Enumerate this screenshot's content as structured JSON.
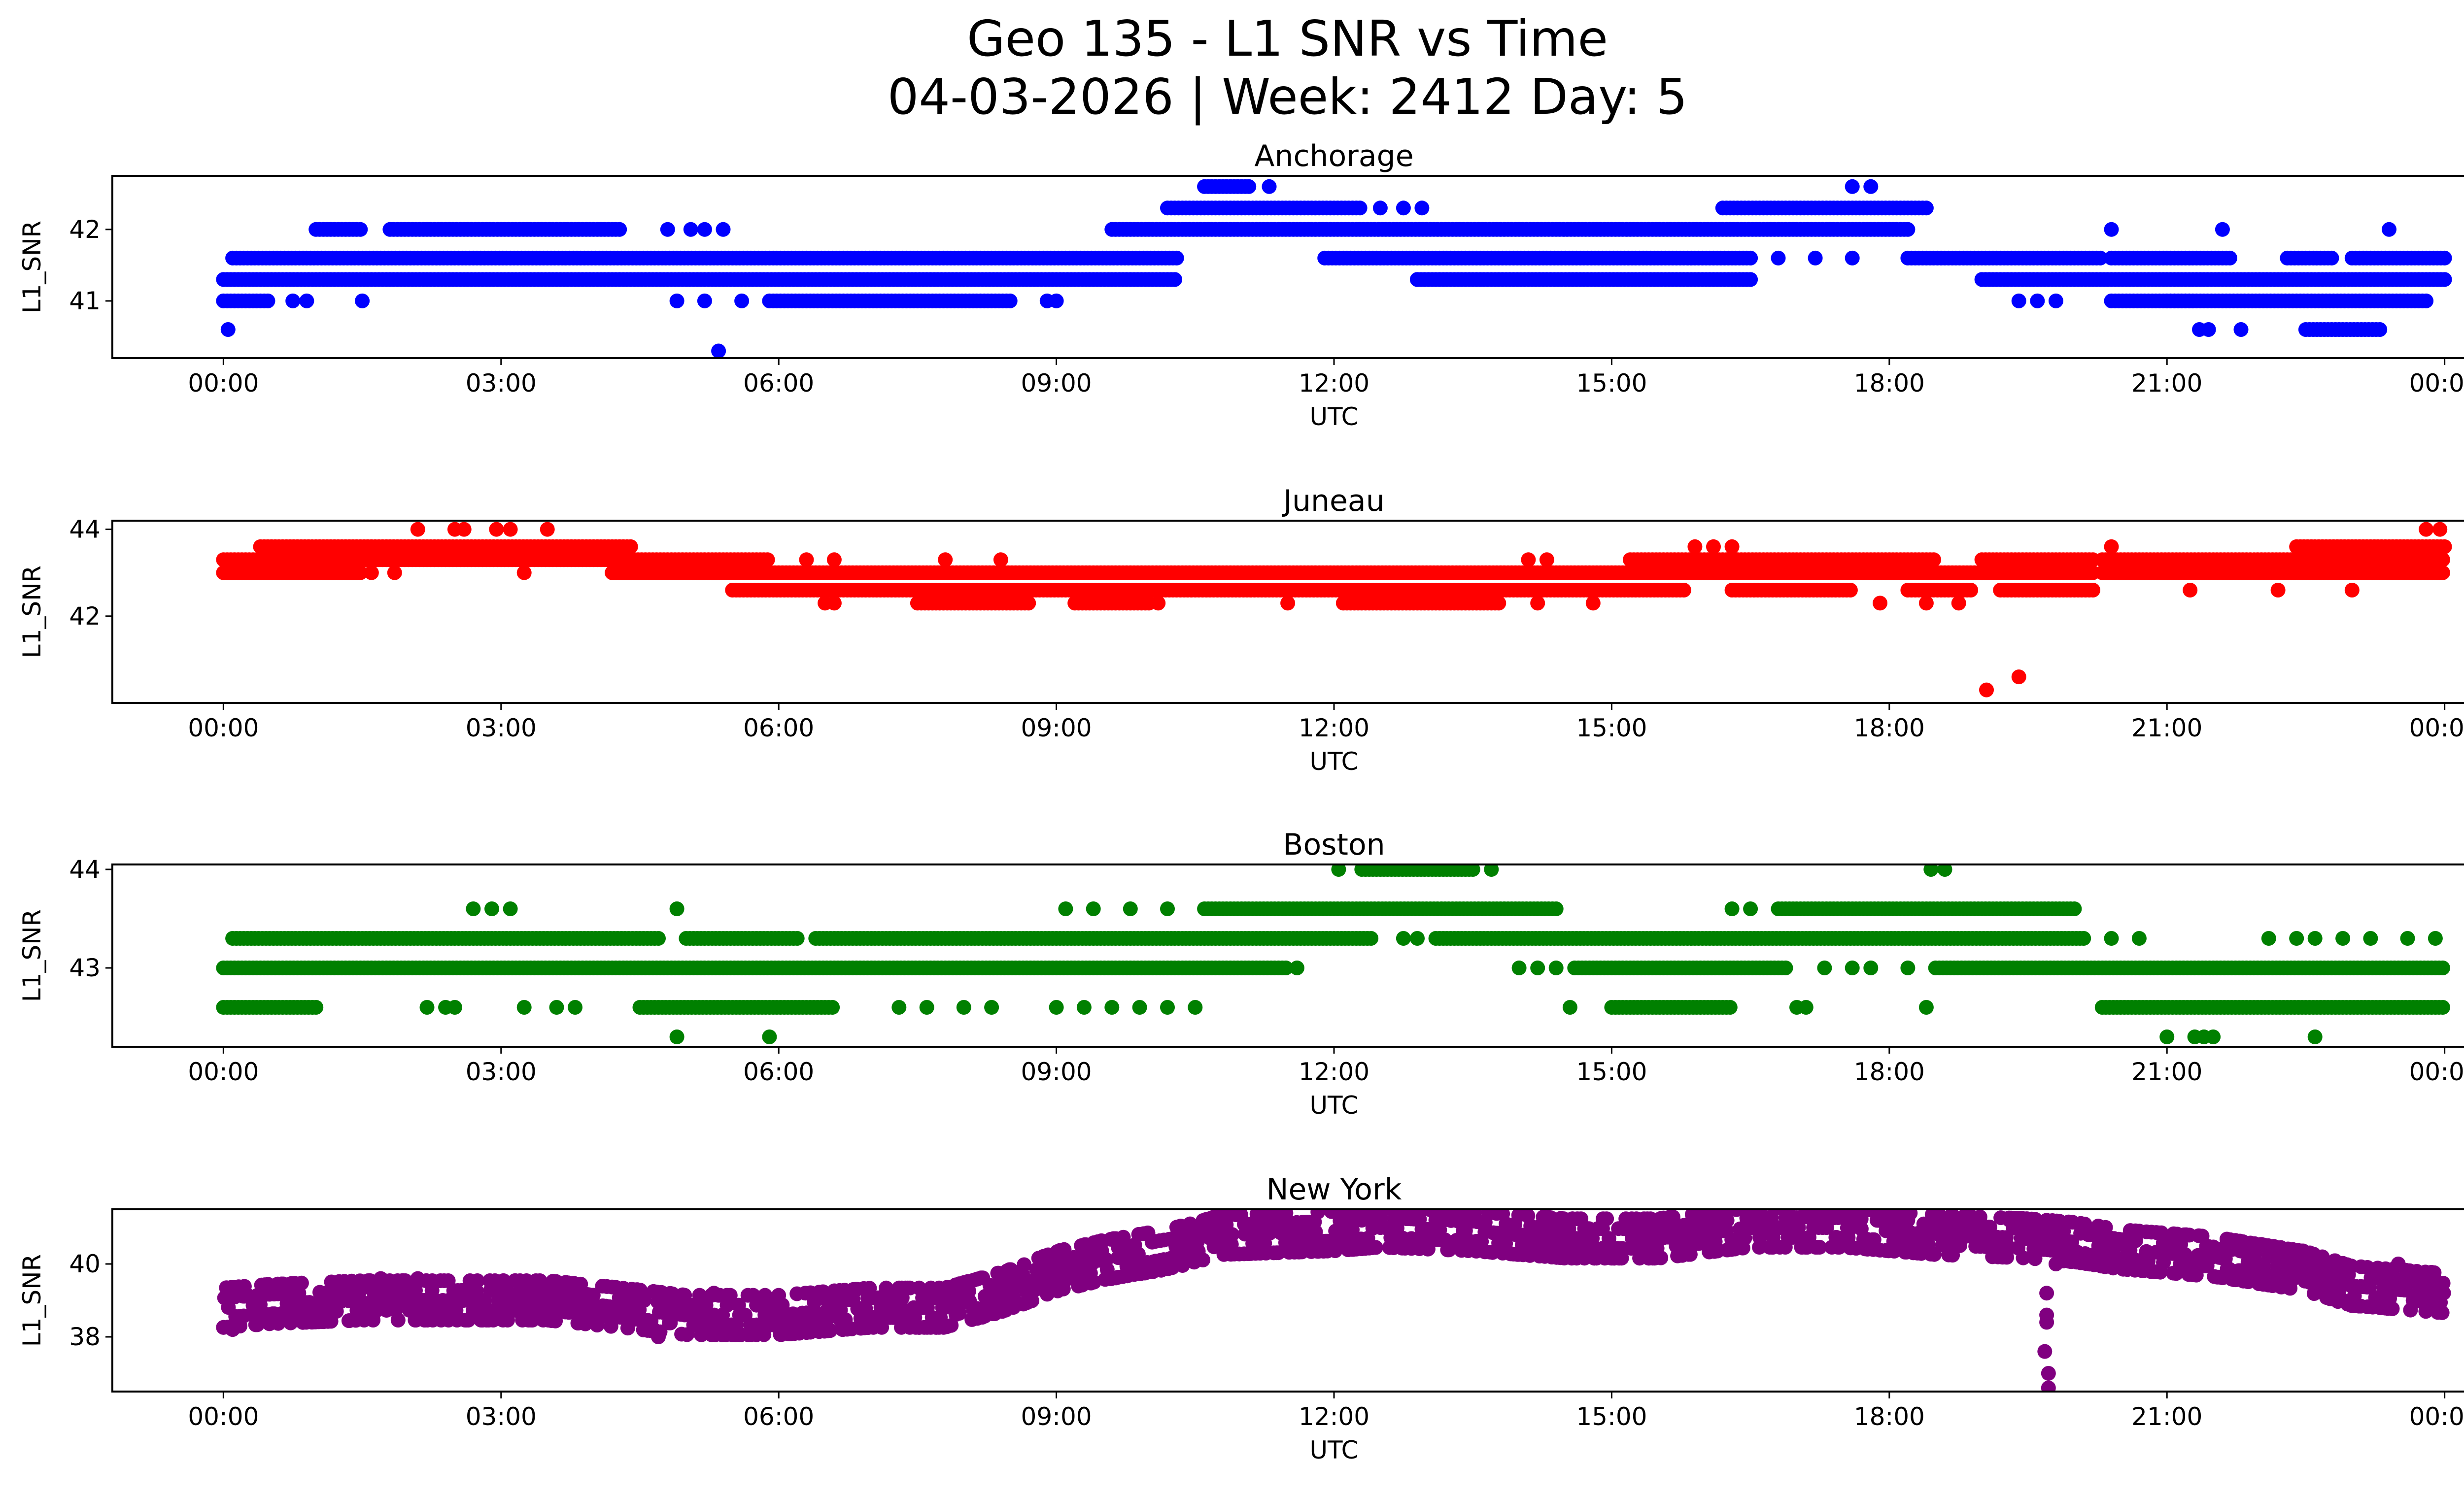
{
  "figure": {
    "title_line1": "Geo 135 - L1 SNR vs Time",
    "title_line2": "04-03-2026 | Week: 2412 Day: 5"
  },
  "chart_data": [
    {
      "type": "scatter",
      "title": "Anchorage",
      "xlabel": "UTC",
      "ylabel": "L1_SNR",
      "color": "#0000ff",
      "x_ticks": [
        "00:00",
        "03:00",
        "06:00",
        "09:00",
        "12:00",
        "15:00",
        "18:00",
        "21:00",
        "00:00"
      ],
      "x_unit": "hours since 00:00 UTC",
      "xlim": [
        -1.2,
        25.2
      ],
      "y_ticks": [
        41,
        42
      ],
      "ylim": [
        40.2,
        42.75
      ],
      "y_levels": [
        40.6,
        41.0,
        41.3,
        41.6,
        42.0,
        42.3,
        42.6
      ],
      "segments": [
        {
          "y": 41.3,
          "from": 0.0,
          "to": 10.3
        },
        {
          "y": 41.3,
          "from": 12.9,
          "to": 16.5
        },
        {
          "y": 41.3,
          "from": 19.0,
          "to": 24.0
        },
        {
          "y": 41.6,
          "from": 0.1,
          "to": 10.3
        },
        {
          "y": 41.6,
          "from": 11.9,
          "to": 16.5
        },
        {
          "y": 41.6,
          "from": 18.2,
          "to": 20.3
        },
        {
          "y": 41.6,
          "from": 20.4,
          "to": 21.7
        },
        {
          "y": 41.6,
          "from": 22.3,
          "to": 22.8
        },
        {
          "y": 41.6,
          "from": 23.0,
          "to": 24.0
        },
        {
          "y": 41.0,
          "from": 0.0,
          "to": 0.5
        },
        {
          "y": 41.0,
          "from": 5.9,
          "to": 8.5
        },
        {
          "y": 41.0,
          "from": 20.4,
          "to": 21.3
        },
        {
          "y": 41.0,
          "from": 21.0,
          "to": 23.8
        },
        {
          "y": 42.0,
          "from": 1.0,
          "to": 1.5
        },
        {
          "y": 42.0,
          "from": 1.8,
          "to": 4.3
        },
        {
          "y": 42.0,
          "from": 9.6,
          "to": 18.2
        },
        {
          "y": 42.3,
          "from": 10.2,
          "to": 12.3
        },
        {
          "y": 42.3,
          "from": 16.2,
          "to": 18.4
        },
        {
          "y": 42.6,
          "from": 10.6,
          "to": 11.1
        },
        {
          "y": 40.6,
          "from": 22.5,
          "to": 23.3
        }
      ],
      "points": [
        {
          "x": 0.05,
          "y": 40.6
        },
        {
          "x": 0.75,
          "y": 41.0
        },
        {
          "x": 0.9,
          "y": 41.0
        },
        {
          "x": 1.5,
          "y": 41.0
        },
        {
          "x": 4.9,
          "y": 41.0
        },
        {
          "x": 5.2,
          "y": 41.0
        },
        {
          "x": 5.6,
          "y": 41.0
        },
        {
          "x": 8.9,
          "y": 41.0
        },
        {
          "x": 9.0,
          "y": 41.0
        },
        {
          "x": 4.8,
          "y": 42.0
        },
        {
          "x": 5.05,
          "y": 42.0
        },
        {
          "x": 5.2,
          "y": 42.0
        },
        {
          "x": 5.4,
          "y": 42.0
        },
        {
          "x": 5.35,
          "y": 40.3
        },
        {
          "x": 12.5,
          "y": 42.3
        },
        {
          "x": 12.75,
          "y": 42.3
        },
        {
          "x": 12.95,
          "y": 42.3
        },
        {
          "x": 11.3,
          "y": 42.6
        },
        {
          "x": 17.6,
          "y": 42.6
        },
        {
          "x": 17.8,
          "y": 42.6
        },
        {
          "x": 12.9,
          "y": 41.3
        },
        {
          "x": 16.8,
          "y": 41.6
        },
        {
          "x": 17.2,
          "y": 41.6
        },
        {
          "x": 17.6,
          "y": 41.6
        },
        {
          "x": 19.4,
          "y": 41.0
        },
        {
          "x": 19.6,
          "y": 41.0
        },
        {
          "x": 19.8,
          "y": 41.0
        },
        {
          "x": 20.4,
          "y": 42.0
        },
        {
          "x": 21.6,
          "y": 42.0
        },
        {
          "x": 23.4,
          "y": 42.0
        },
        {
          "x": 21.35,
          "y": 40.6
        },
        {
          "x": 21.45,
          "y": 40.6
        },
        {
          "x": 21.8,
          "y": 40.6
        }
      ]
    },
    {
      "type": "scatter",
      "title": "Juneau",
      "xlabel": "UTC",
      "ylabel": "L1_SNR",
      "color": "#ff0000",
      "x_ticks": [
        "00:00",
        "03:00",
        "06:00",
        "09:00",
        "12:00",
        "15:00",
        "18:00",
        "21:00",
        "00:00"
      ],
      "x_unit": "hours since 00:00 UTC",
      "xlim": [
        -1.2,
        25.2
      ],
      "y_ticks": [
        42,
        44
      ],
      "ylim": [
        40.0,
        44.2
      ],
      "y_levels": [
        42.3,
        42.6,
        43.0,
        43.3,
        43.6,
        44.0
      ],
      "segments": [
        {
          "y": 43.0,
          "from": 0.0,
          "to": 1.5
        },
        {
          "y": 43.0,
          "from": 4.2,
          "to": 20.2
        },
        {
          "y": 43.0,
          "from": 20.3,
          "to": 24.0
        },
        {
          "y": 43.3,
          "from": 0.0,
          "to": 5.9
        },
        {
          "y": 43.3,
          "from": 15.2,
          "to": 18.5
        },
        {
          "y": 43.3,
          "from": 19.0,
          "to": 20.2
        },
        {
          "y": 43.3,
          "from": 20.3,
          "to": 24.0
        },
        {
          "y": 43.6,
          "from": 0.4,
          "to": 4.4
        },
        {
          "y": 43.6,
          "from": 22.4,
          "to": 24.0
        },
        {
          "y": 42.6,
          "from": 5.5,
          "to": 15.8
        },
        {
          "y": 42.6,
          "from": 16.3,
          "to": 17.6
        },
        {
          "y": 42.6,
          "from": 18.2,
          "to": 18.9
        },
        {
          "y": 42.6,
          "from": 19.2,
          "to": 20.2
        },
        {
          "y": 42.3,
          "from": 7.5,
          "to": 8.7
        },
        {
          "y": 42.3,
          "from": 9.2,
          "to": 10.0
        },
        {
          "y": 42.3,
          "from": 12.1,
          "to": 13.8
        }
      ],
      "points": [
        {
          "x": 2.1,
          "y": 44.0
        },
        {
          "x": 2.5,
          "y": 44.0
        },
        {
          "x": 2.6,
          "y": 44.0
        },
        {
          "x": 2.95,
          "y": 44.0
        },
        {
          "x": 3.1,
          "y": 44.0
        },
        {
          "x": 3.5,
          "y": 44.0
        },
        {
          "x": 23.8,
          "y": 44.0
        },
        {
          "x": 23.95,
          "y": 44.0
        },
        {
          "x": 1.6,
          "y": 43.0
        },
        {
          "x": 1.85,
          "y": 43.0
        },
        {
          "x": 3.25,
          "y": 43.0
        },
        {
          "x": 6.3,
          "y": 43.3
        },
        {
          "x": 6.6,
          "y": 43.3
        },
        {
          "x": 7.8,
          "y": 43.3
        },
        {
          "x": 8.4,
          "y": 43.3
        },
        {
          "x": 6.5,
          "y": 42.3
        },
        {
          "x": 6.6,
          "y": 42.3
        },
        {
          "x": 10.1,
          "y": 42.3
        },
        {
          "x": 11.5,
          "y": 42.3
        },
        {
          "x": 14.2,
          "y": 42.3
        },
        {
          "x": 14.8,
          "y": 42.3
        },
        {
          "x": 14.3,
          "y": 43.3
        },
        {
          "x": 14.1,
          "y": 43.3
        },
        {
          "x": 17.9,
          "y": 42.3
        },
        {
          "x": 18.4,
          "y": 42.3
        },
        {
          "x": 18.75,
          "y": 42.3
        },
        {
          "x": 21.25,
          "y": 42.6
        },
        {
          "x": 22.2,
          "y": 42.6
        },
        {
          "x": 23.0,
          "y": 42.6
        },
        {
          "x": 20.4,
          "y": 43.6
        },
        {
          "x": 15.9,
          "y": 43.6
        },
        {
          "x": 16.1,
          "y": 43.6
        },
        {
          "x": 16.3,
          "y": 43.6
        },
        {
          "x": 19.05,
          "y": 40.3
        },
        {
          "x": 19.4,
          "y": 40.6
        }
      ]
    },
    {
      "type": "scatter",
      "title": "Boston",
      "xlabel": "UTC",
      "ylabel": "L1_SNR",
      "color": "#008000",
      "x_ticks": [
        "00:00",
        "03:00",
        "06:00",
        "09:00",
        "12:00",
        "15:00",
        "18:00",
        "21:00",
        "00:00"
      ],
      "x_unit": "hours since 00:00 UTC",
      "xlim": [
        -1.2,
        25.2
      ],
      "y_ticks": [
        43,
        44
      ],
      "ylim": [
        42.2,
        44.05
      ],
      "y_levels": [
        42.3,
        42.6,
        43.0,
        43.3,
        43.6,
        44.0
      ],
      "segments": [
        {
          "y": 43.0,
          "from": 0.0,
          "to": 11.5
        },
        {
          "y": 43.0,
          "from": 14.6,
          "to": 16.9
        },
        {
          "y": 43.0,
          "from": 18.5,
          "to": 24.0
        },
        {
          "y": 43.3,
          "from": 0.1,
          "to": 4.7
        },
        {
          "y": 43.3,
          "from": 5.0,
          "to": 6.2
        },
        {
          "y": 43.3,
          "from": 6.4,
          "to": 12.4
        },
        {
          "y": 43.3,
          "from": 13.1,
          "to": 20.1
        },
        {
          "y": 43.6,
          "from": 10.6,
          "to": 14.4
        },
        {
          "y": 43.6,
          "from": 16.8,
          "to": 20.0
        },
        {
          "y": 42.6,
          "from": 0.0,
          "to": 1.0
        },
        {
          "y": 42.6,
          "from": 4.5,
          "to": 6.6
        },
        {
          "y": 42.6,
          "from": 15.0,
          "to": 16.3
        },
        {
          "y": 42.6,
          "from": 20.3,
          "to": 24.0
        },
        {
          "y": 44.0,
          "from": 12.3,
          "to": 13.5
        }
      ],
      "points": [
        {
          "x": 2.2,
          "y": 42.6
        },
        {
          "x": 2.4,
          "y": 42.6
        },
        {
          "x": 2.5,
          "y": 42.6
        },
        {
          "x": 3.25,
          "y": 42.6
        },
        {
          "x": 3.6,
          "y": 42.6
        },
        {
          "x": 3.8,
          "y": 42.6
        },
        {
          "x": 7.3,
          "y": 42.6
        },
        {
          "x": 7.6,
          "y": 42.6
        },
        {
          "x": 8.0,
          "y": 42.6
        },
        {
          "x": 8.3,
          "y": 42.6
        },
        {
          "x": 9.0,
          "y": 42.6
        },
        {
          "x": 9.3,
          "y": 42.6
        },
        {
          "x": 9.6,
          "y": 42.6
        },
        {
          "x": 9.9,
          "y": 42.6
        },
        {
          "x": 10.2,
          "y": 42.6
        },
        {
          "x": 10.5,
          "y": 42.6
        },
        {
          "x": 14.55,
          "y": 42.6
        },
        {
          "x": 17.0,
          "y": 42.6
        },
        {
          "x": 17.1,
          "y": 42.6
        },
        {
          "x": 18.4,
          "y": 42.6
        },
        {
          "x": 2.7,
          "y": 43.6
        },
        {
          "x": 2.9,
          "y": 43.6
        },
        {
          "x": 3.1,
          "y": 43.6
        },
        {
          "x": 4.9,
          "y": 43.6
        },
        {
          "x": 9.1,
          "y": 43.6
        },
        {
          "x": 9.4,
          "y": 43.6
        },
        {
          "x": 9.8,
          "y": 43.6
        },
        {
          "x": 10.2,
          "y": 43.6
        },
        {
          "x": 16.3,
          "y": 43.6
        },
        {
          "x": 16.5,
          "y": 43.6
        },
        {
          "x": 12.05,
          "y": 44.0
        },
        {
          "x": 13.7,
          "y": 44.0
        },
        {
          "x": 18.45,
          "y": 44.0
        },
        {
          "x": 18.6,
          "y": 44.0
        },
        {
          "x": 12.75,
          "y": 43.3
        },
        {
          "x": 12.9,
          "y": 43.3
        },
        {
          "x": 11.6,
          "y": 43.0
        },
        {
          "x": 14.0,
          "y": 43.0
        },
        {
          "x": 14.2,
          "y": 43.0
        },
        {
          "x": 14.4,
          "y": 43.0
        },
        {
          "x": 17.3,
          "y": 43.0
        },
        {
          "x": 17.6,
          "y": 43.0
        },
        {
          "x": 17.8,
          "y": 43.0
        },
        {
          "x": 18.2,
          "y": 43.0
        },
        {
          "x": 20.4,
          "y": 43.3
        },
        {
          "x": 20.7,
          "y": 43.3
        },
        {
          "x": 22.1,
          "y": 43.3
        },
        {
          "x": 22.4,
          "y": 43.3
        },
        {
          "x": 22.6,
          "y": 43.3
        },
        {
          "x": 22.9,
          "y": 43.3
        },
        {
          "x": 23.2,
          "y": 43.3
        },
        {
          "x": 23.6,
          "y": 43.3
        },
        {
          "x": 23.9,
          "y": 43.3
        },
        {
          "x": 4.9,
          "y": 42.3
        },
        {
          "x": 5.9,
          "y": 42.3
        },
        {
          "x": 21.0,
          "y": 42.3
        },
        {
          "x": 21.3,
          "y": 42.3
        },
        {
          "x": 21.4,
          "y": 42.3
        },
        {
          "x": 21.5,
          "y": 42.3
        },
        {
          "x": 22.6,
          "y": 42.3
        }
      ]
    },
    {
      "type": "scatter",
      "title": "New York",
      "xlabel": "UTC",
      "ylabel": "L1_SNR",
      "color": "#800080",
      "x_ticks": [
        "00:00",
        "03:00",
        "06:00",
        "09:00",
        "12:00",
        "15:00",
        "18:00",
        "21:00",
        "00:00"
      ],
      "x_unit": "hours since 00:00 UTC",
      "xlim": [
        -1.2,
        25.2
      ],
      "y_ticks": [
        38,
        40
      ],
      "ylim": [
        36.5,
        41.5
      ],
      "drift_profile": [
        {
          "x": 0.0,
          "y": 38.8
        },
        {
          "x": 0.5,
          "y": 38.9
        },
        {
          "x": 1.5,
          "y": 39.0
        },
        {
          "x": 2.5,
          "y": 39.0
        },
        {
          "x": 3.5,
          "y": 39.0
        },
        {
          "x": 4.3,
          "y": 38.8
        },
        {
          "x": 5.0,
          "y": 38.6
        },
        {
          "x": 6.0,
          "y": 38.6
        },
        {
          "x": 7.0,
          "y": 38.8
        },
        {
          "x": 7.8,
          "y": 38.8
        },
        {
          "x": 8.5,
          "y": 39.3
        },
        {
          "x": 9.0,
          "y": 39.8
        },
        {
          "x": 9.5,
          "y": 40.1
        },
        {
          "x": 10.2,
          "y": 40.4
        },
        {
          "x": 10.8,
          "y": 40.8
        },
        {
          "x": 12.0,
          "y": 40.9
        },
        {
          "x": 12.5,
          "y": 41.0
        },
        {
          "x": 13.5,
          "y": 40.9
        },
        {
          "x": 14.5,
          "y": 40.7
        },
        {
          "x": 15.5,
          "y": 40.7
        },
        {
          "x": 16.5,
          "y": 41.0
        },
        {
          "x": 17.5,
          "y": 41.0
        },
        {
          "x": 18.5,
          "y": 40.8
        },
        {
          "x": 19.5,
          "y": 40.7
        },
        {
          "x": 20.0,
          "y": 40.6
        },
        {
          "x": 20.5,
          "y": 40.4
        },
        {
          "x": 21.5,
          "y": 40.2
        },
        {
          "x": 22.5,
          "y": 39.8
        },
        {
          "x": 23.0,
          "y": 39.4
        },
        {
          "x": 24.0,
          "y": 39.2
        }
      ],
      "points": [
        {
          "x": 19.7,
          "y": 38.4
        },
        {
          "x": 19.7,
          "y": 38.6
        },
        {
          "x": 19.7,
          "y": 39.2
        },
        {
          "x": 19.72,
          "y": 37.0
        },
        {
          "x": 19.72,
          "y": 36.6
        },
        {
          "x": 19.68,
          "y": 37.6
        },
        {
          "x": 4.7,
          "y": 38.0
        },
        {
          "x": 4.65,
          "y": 38.2
        },
        {
          "x": 0.1,
          "y": 38.2
        },
        {
          "x": 2.1,
          "y": 39.6
        },
        {
          "x": 1.7,
          "y": 39.6
        },
        {
          "x": 5.3,
          "y": 39.2
        },
        {
          "x": 12.3,
          "y": 41.2
        },
        {
          "x": 13.1,
          "y": 41.2
        },
        {
          "x": 13.5,
          "y": 41.2
        },
        {
          "x": 16.6,
          "y": 41.2
        },
        {
          "x": 19.3,
          "y": 41.2
        },
        {
          "x": 17.2,
          "y": 41.3
        },
        {
          "x": 18.2,
          "y": 41.2
        },
        {
          "x": 19.8,
          "y": 40.0
        },
        {
          "x": 23.5,
          "y": 40.0
        },
        {
          "x": 22.9,
          "y": 39.0
        },
        {
          "x": 23.8,
          "y": 38.9
        }
      ]
    }
  ]
}
